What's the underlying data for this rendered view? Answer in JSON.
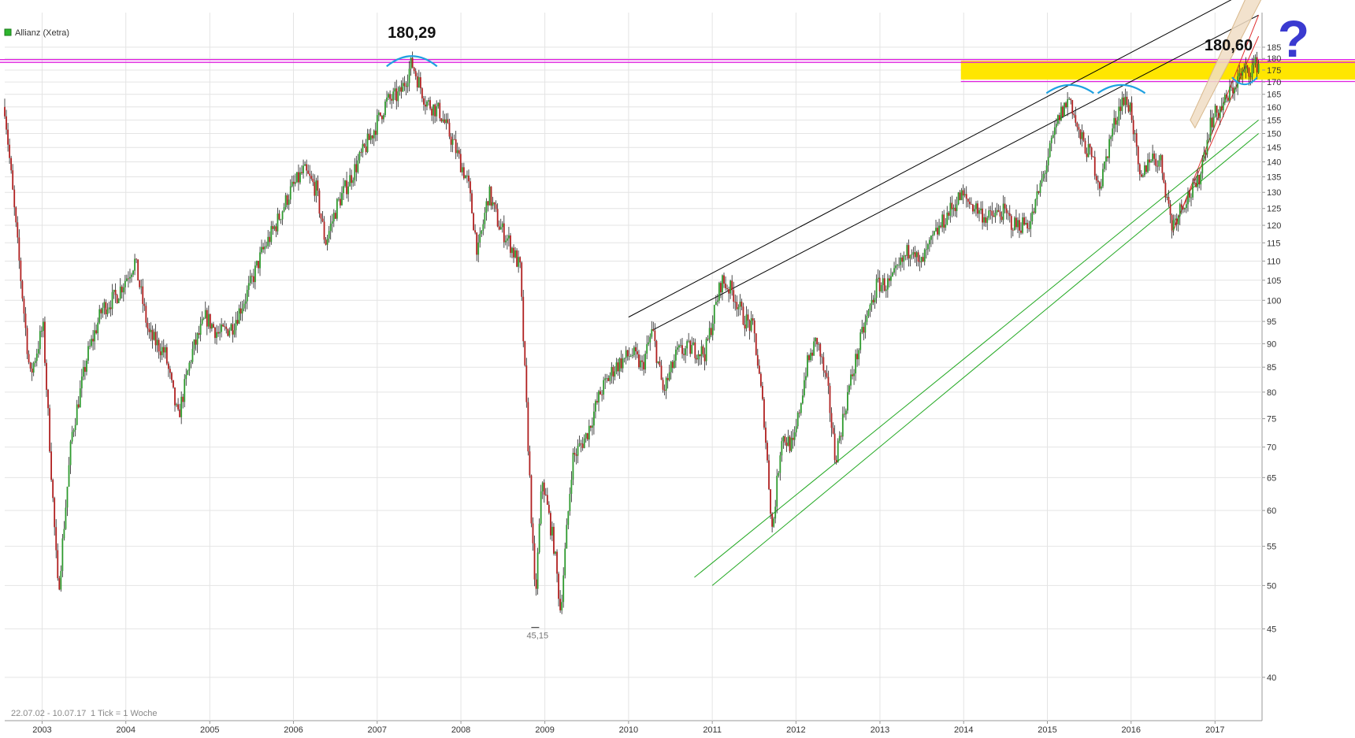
{
  "chart_data": {
    "type": "candlestick",
    "title": "Allianz (Xetra)",
    "legend_color": "#2db52d",
    "scale": "log",
    "ylim": [
      36,
      190
    ],
    "y_ticks": [
      40,
      45,
      50,
      55,
      60,
      65,
      70,
      75,
      80,
      85,
      90,
      95,
      100,
      105,
      110,
      115,
      120,
      125,
      130,
      135,
      140,
      145,
      150,
      155,
      160,
      165,
      170,
      175,
      180,
      185
    ],
    "x_ticks": [
      "2003",
      "2004",
      "2005",
      "2006",
      "2007",
      "2008",
      "2009",
      "2010",
      "2011",
      "2012",
      "2013",
      "2014",
      "2015",
      "2016",
      "2017"
    ],
    "date_range_label": "22.07.02 - 10.07.17",
    "interval_label": "1 Tick = 1 Woche",
    "annotations": {
      "high_2007": "180,29",
      "high_2017": "180,60",
      "low_2009": "45,15",
      "question_mark": "?"
    },
    "series": [
      {
        "color_up": "#2e9a2e",
        "color_down": "#b02020",
        "points": [
          [
            "2002-07-22",
            160
          ],
          [
            "2002-09-15",
            115
          ],
          [
            "2002-11-10",
            83
          ],
          [
            "2003-01-05",
            94
          ],
          [
            "2003-03-12",
            49
          ],
          [
            "2003-05-10",
            72
          ],
          [
            "2003-07-15",
            87
          ],
          [
            "2003-09-20",
            98
          ],
          [
            "2003-11-20",
            101
          ],
          [
            "2004-02-10",
            110
          ],
          [
            "2004-04-10",
            92
          ],
          [
            "2004-06-20",
            88
          ],
          [
            "2004-08-15",
            75
          ],
          [
            "2004-10-15",
            88
          ],
          [
            "2004-12-15",
            96
          ],
          [
            "2005-02-10",
            92
          ],
          [
            "2005-04-10",
            94
          ],
          [
            "2005-06-15",
            102
          ],
          [
            "2005-08-15",
            112
          ],
          [
            "2005-10-15",
            120
          ],
          [
            "2005-12-15",
            130
          ],
          [
            "2006-02-15",
            137
          ],
          [
            "2006-04-10",
            131
          ],
          [
            "2006-05-20",
            115
          ],
          [
            "2006-07-10",
            126
          ],
          [
            "2006-09-15",
            136
          ],
          [
            "2006-12-10",
            150
          ],
          [
            "2007-02-10",
            162
          ],
          [
            "2007-04-10",
            165
          ],
          [
            "2007-06-01",
            178
          ],
          [
            "2007-08-01",
            162
          ],
          [
            "2007-10-01",
            158
          ],
          [
            "2007-12-01",
            146
          ],
          [
            "2008-02-01",
            133
          ],
          [
            "2008-03-15",
            112
          ],
          [
            "2008-05-01",
            130
          ],
          [
            "2008-06-15",
            120
          ],
          [
            "2008-08-01",
            115
          ],
          [
            "2008-09-15",
            108
          ],
          [
            "2008-10-15",
            75
          ],
          [
            "2008-11-20",
            48
          ],
          [
            "2008-12-20",
            65
          ],
          [
            "2009-02-10",
            55
          ],
          [
            "2009-03-10",
            47
          ],
          [
            "2009-05-01",
            68
          ],
          [
            "2009-07-01",
            72
          ],
          [
            "2009-09-01",
            80
          ],
          [
            "2009-11-01",
            85
          ],
          [
            "2010-01-15",
            88
          ],
          [
            "2010-03-01",
            85
          ],
          [
            "2010-04-15",
            93
          ],
          [
            "2010-06-01",
            80
          ],
          [
            "2010-08-01",
            88
          ],
          [
            "2010-10-01",
            89
          ],
          [
            "2010-12-01",
            88
          ],
          [
            "2011-02-10",
            105
          ],
          [
            "2011-04-01",
            102
          ],
          [
            "2011-05-15",
            96
          ],
          [
            "2011-07-01",
            93
          ],
          [
            "2011-08-15",
            75
          ],
          [
            "2011-09-20",
            57
          ],
          [
            "2011-10-30",
            72
          ],
          [
            "2011-12-20",
            70
          ],
          [
            "2012-02-15",
            85
          ],
          [
            "2012-04-01",
            91
          ],
          [
            "2012-05-20",
            80
          ],
          [
            "2012-06-20",
            68
          ],
          [
            "2012-08-15",
            80
          ],
          [
            "2012-10-15",
            92
          ],
          [
            "2012-12-20",
            104
          ],
          [
            "2013-02-15",
            104
          ],
          [
            "2013-04-10",
            110
          ],
          [
            "2013-05-25",
            115
          ],
          [
            "2013-06-20",
            108
          ],
          [
            "2013-08-20",
            116
          ],
          [
            "2013-10-20",
            123
          ],
          [
            "2013-12-20",
            129
          ],
          [
            "2014-02-10",
            126
          ],
          [
            "2014-04-15",
            122
          ],
          [
            "2014-06-20",
            124
          ],
          [
            "2014-08-10",
            120
          ],
          [
            "2014-10-20",
            121
          ],
          [
            "2014-12-20",
            137
          ],
          [
            "2015-02-20",
            156
          ],
          [
            "2015-04-10",
            164
          ],
          [
            "2015-05-15",
            150
          ],
          [
            "2015-07-15",
            141
          ],
          [
            "2015-08-20",
            132
          ],
          [
            "2015-10-01",
            148
          ],
          [
            "2015-11-20",
            163
          ],
          [
            "2015-12-31",
            160
          ],
          [
            "2016-02-10",
            132
          ],
          [
            "2016-03-20",
            142
          ],
          [
            "2016-05-10",
            140
          ],
          [
            "2016-06-27",
            120
          ],
          [
            "2016-08-15",
            127
          ],
          [
            "2016-10-15",
            132
          ],
          [
            "2016-12-15",
            155
          ],
          [
            "2017-02-15",
            162
          ],
          [
            "2017-04-15",
            172
          ],
          [
            "2017-05-25",
            175
          ],
          [
            "2017-07-10",
            178
          ]
        ]
      }
    ],
    "trendlines": [
      {
        "color": "#000000",
        "from": [
          "2010-01-01",
          96
        ],
        "to": [
          "2017-07-10",
          215
        ]
      },
      {
        "color": "#000000",
        "from": [
          "2010-04-15",
          93
        ],
        "to": [
          "2017-07-10",
          200
        ]
      },
      {
        "color": "#21a821",
        "from": [
          "2010-10-15",
          51
        ],
        "to": [
          "2017-07-10",
          155
        ]
      },
      {
        "color": "#21a821",
        "from": [
          "2011-01-01",
          50
        ],
        "to": [
          "2017-07-10",
          150
        ]
      },
      {
        "color": "#e03030",
        "from": [
          "2016-07-01",
          118
        ],
        "to": [
          "2017-07-10",
          200
        ]
      },
      {
        "color": "#e03030",
        "from": [
          "2016-07-10",
          120
        ],
        "to": [
          "2017-07-10",
          190
        ]
      }
    ],
    "horizontal_lines": [
      {
        "color": "#e020e0",
        "value": 179.5
      },
      {
        "color": "#e020e0",
        "value": 178.3
      },
      {
        "color": "#e020e0",
        "value": 170.2,
        "from": "2013-12-20"
      }
    ],
    "zones": [
      {
        "color": "#ffe600",
        "from_date": "2013-12-20",
        "low": 171,
        "high": 179
      }
    ]
  }
}
